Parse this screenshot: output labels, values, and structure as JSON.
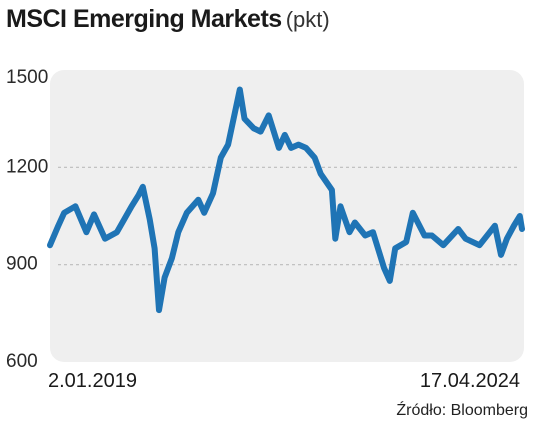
{
  "header": {
    "title": "MSCI Emerging Markets",
    "unit": "(pkt)"
  },
  "source": "Źródło: Bloomberg",
  "colors": {
    "line": "#1f74b5",
    "plot_background": "#efefef",
    "grid": "#bcbcbc"
  },
  "chart_data": {
    "type": "line",
    "title": "MSCI Emerging Markets",
    "ylabel": "(pkt)",
    "ylim": [
      600,
      1500
    ],
    "yticks": [
      600,
      900,
      1200,
      1500
    ],
    "xlim": [
      "2019-01-02",
      "2024-04-17"
    ],
    "x_tick_labels": [
      "2.01.2019",
      "17.04.2024"
    ],
    "grid": "horizontal dashed",
    "series": [
      {
        "x": [
          "2019-01-02",
          "2019-02-05",
          "2019-03-01",
          "2019-04-16",
          "2019-05-31",
          "2019-07-01",
          "2019-08-15",
          "2019-10-03",
          "2019-12-02",
          "2019-12-31",
          "2020-01-17",
          "2020-02-14",
          "2020-03-05",
          "2020-03-23",
          "2020-04-15",
          "2020-05-15",
          "2020-06-10",
          "2020-07-15",
          "2020-08-31",
          "2020-09-24",
          "2020-10-30",
          "2020-12-01",
          "2020-12-31",
          "2021-02-17",
          "2021-03-08",
          "2021-04-15",
          "2021-05-13",
          "2021-06-15",
          "2021-07-27",
          "2021-08-20",
          "2021-09-15",
          "2021-10-15",
          "2021-11-15",
          "2021-12-20",
          "2022-01-14",
          "2022-03-01",
          "2022-03-15",
          "2022-04-05",
          "2022-05-12",
          "2022-06-03",
          "2022-07-15",
          "2022-08-16",
          "2022-09-30",
          "2022-10-24",
          "2022-11-15",
          "2022-12-30",
          "2023-01-26",
          "2023-03-15",
          "2023-04-14",
          "2023-05-31",
          "2023-07-31",
          "2023-08-30",
          "2023-10-26",
          "2023-12-28",
          "2024-01-22",
          "2024-02-15",
          "2024-03-15",
          "2024-04-08",
          "2024-04-17"
        ],
        "y": [
          960,
          1020,
          1060,
          1080,
          1000,
          1055,
          980,
          1000,
          1080,
          1115,
          1140,
          1040,
          950,
          760,
          860,
          920,
          1000,
          1060,
          1100,
          1060,
          1120,
          1230,
          1270,
          1440,
          1350,
          1320,
          1310,
          1360,
          1260,
          1300,
          1260,
          1270,
          1260,
          1230,
          1180,
          1130,
          980,
          1080,
          1000,
          1030,
          990,
          1000,
          890,
          850,
          950,
          970,
          1060,
          990,
          990,
          960,
          1010,
          980,
          960,
          1020,
          930,
          980,
          1020,
          1050,
          1010
        ]
      }
    ]
  }
}
